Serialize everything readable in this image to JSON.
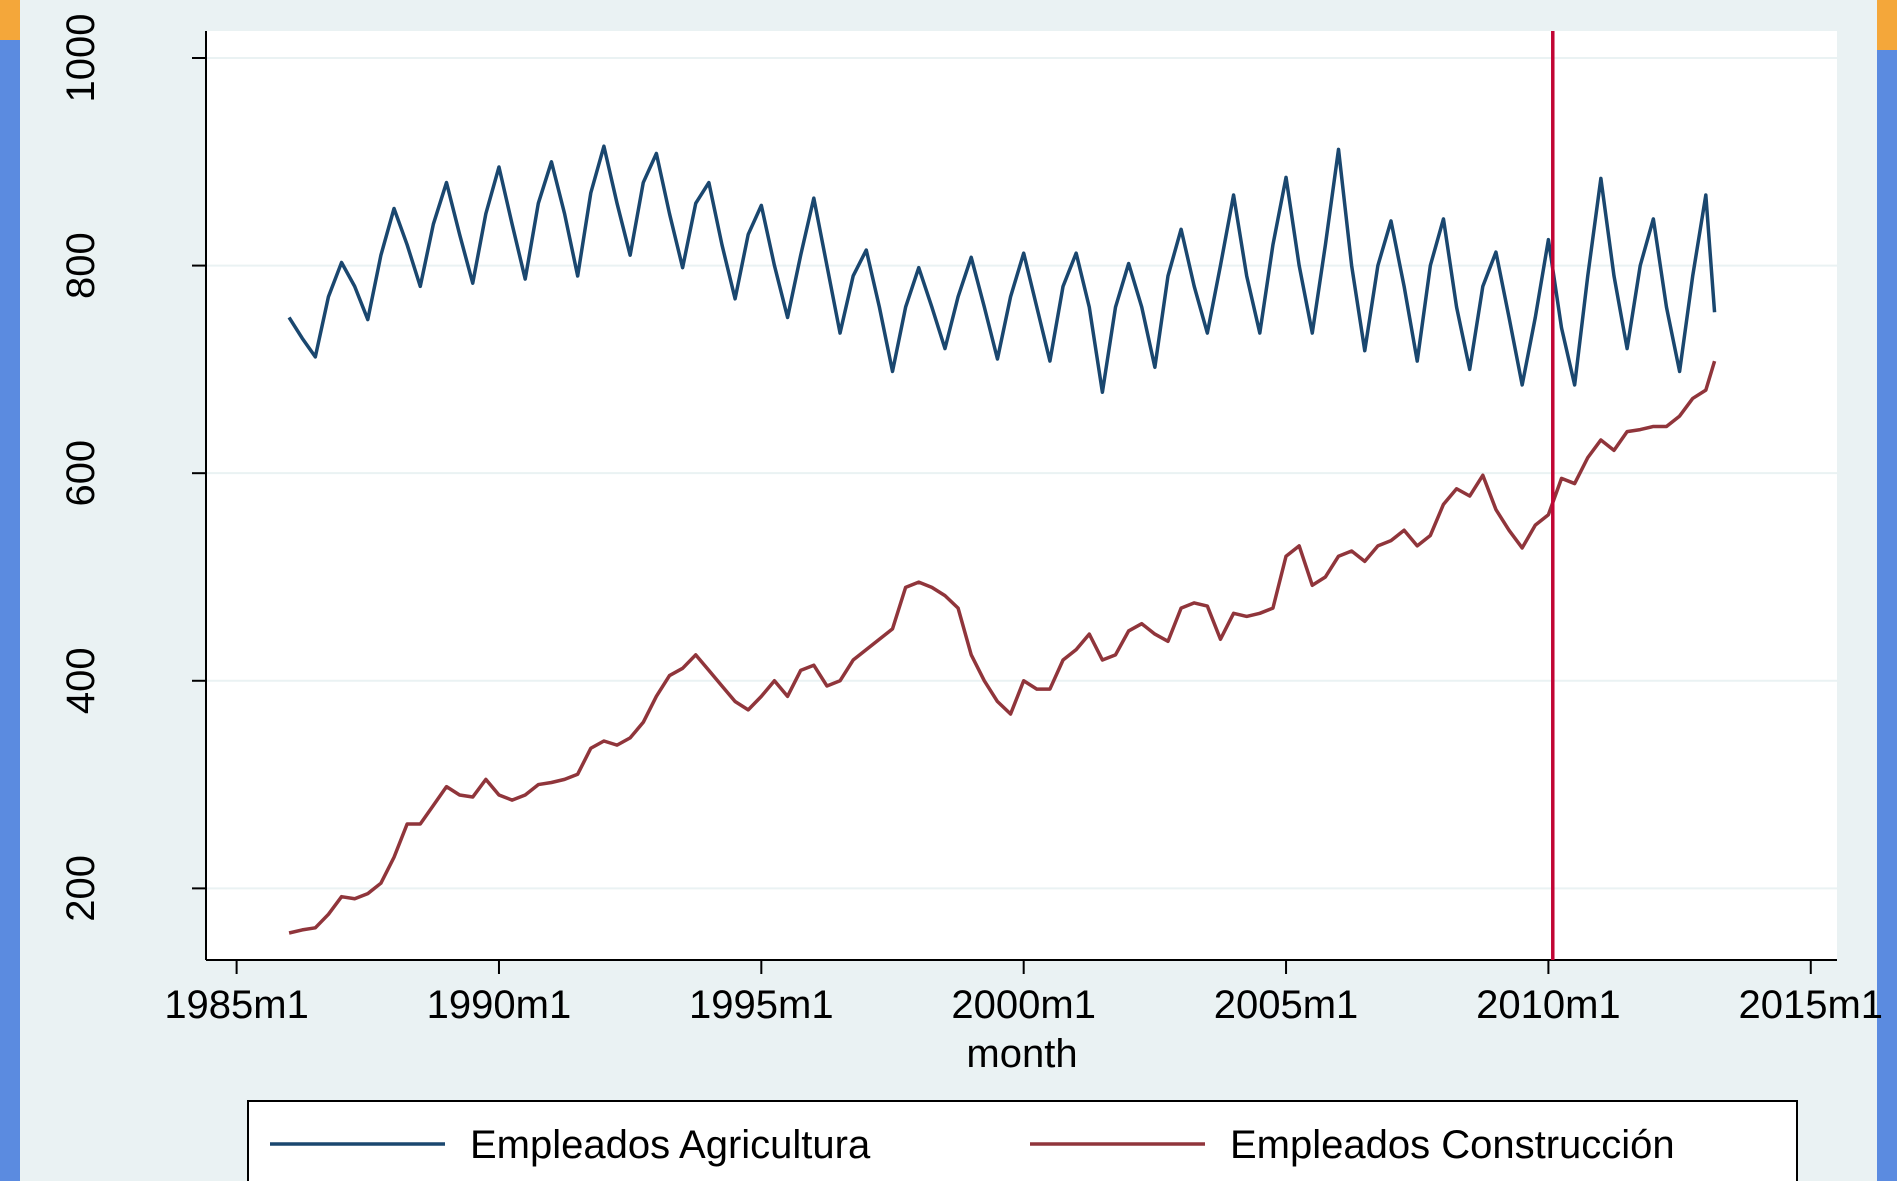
{
  "chart_data": {
    "type": "line",
    "xlabel": "month",
    "x": [
      312,
      315,
      318,
      321,
      324,
      327,
      330,
      333,
      336,
      339,
      342,
      345,
      348,
      351,
      354,
      357,
      360,
      363,
      366,
      369,
      372,
      375,
      378,
      381,
      384,
      387,
      390,
      393,
      396,
      399,
      402,
      405,
      408,
      411,
      414,
      417,
      420,
      423,
      426,
      429,
      432,
      435,
      438,
      441,
      444,
      447,
      450,
      453,
      456,
      459,
      462,
      465,
      468,
      471,
      474,
      477,
      480,
      483,
      486,
      489,
      492,
      495,
      498,
      501,
      504,
      507,
      510,
      513,
      516,
      519,
      522,
      525,
      528,
      531,
      534,
      537,
      540,
      543,
      546,
      549,
      552,
      555,
      558,
      561,
      564,
      567,
      570,
      573,
      576,
      579,
      582,
      585,
      588,
      591,
      594,
      597,
      600,
      603,
      606,
      609,
      612,
      615,
      618,
      621,
      624,
      627,
      630,
      633,
      636,
      638
    ],
    "series": [
      {
        "name": "Empleados Agricultura",
        "color": "#1a476f",
        "values": [
          750,
          730,
          712,
          770,
          803,
          780,
          748,
          810,
          855,
          820,
          780,
          840,
          880,
          830,
          783,
          850,
          895,
          840,
          787,
          860,
          900,
          850,
          790,
          870,
          915,
          860,
          810,
          880,
          908,
          850,
          798,
          860,
          880,
          820,
          768,
          830,
          858,
          800,
          750,
          810,
          865,
          800,
          735,
          790,
          815,
          760,
          698,
          760,
          798,
          760,
          720,
          770,
          808,
          760,
          710,
          770,
          812,
          760,
          708,
          780,
          812,
          760,
          678,
          760,
          802,
          760,
          702,
          790,
          835,
          780,
          735,
          800,
          868,
          790,
          735,
          820,
          885,
          800,
          735,
          820,
          912,
          800,
          718,
          800,
          843,
          780,
          708,
          800,
          845,
          760,
          700,
          780,
          813,
          750,
          685,
          750,
          825,
          740,
          685,
          790,
          884,
          790,
          720,
          800,
          845,
          760,
          698,
          790,
          868,
          755
        ]
      },
      {
        "name": "Empleados Construcción",
        "color": "#90353b",
        "values": [
          157,
          160,
          162,
          175,
          192,
          190,
          195,
          205,
          230,
          262,
          262,
          280,
          298,
          290,
          288,
          305,
          290,
          285,
          290,
          300,
          302,
          305,
          310,
          335,
          342,
          338,
          345,
          360,
          385,
          405,
          412,
          425,
          410,
          395,
          380,
          372,
          385,
          400,
          385,
          410,
          415,
          395,
          400,
          420,
          430,
          440,
          450,
          490,
          495,
          490,
          482,
          470,
          425,
          400,
          380,
          368,
          400,
          392,
          392,
          420,
          430,
          445,
          420,
          425,
          448,
          455,
          445,
          438,
          470,
          475,
          472,
          440,
          465,
          462,
          465,
          470,
          520,
          530,
          492,
          500,
          520,
          525,
          515,
          530,
          535,
          545,
          530,
          540,
          570,
          585,
          578,
          598,
          565,
          545,
          528,
          550,
          560,
          595,
          590,
          615,
          632,
          622,
          640,
          642,
          645,
          645,
          655,
          672,
          680,
          708
        ]
      }
    ],
    "xline": 601,
    "xline_color": "#c10534",
    "xlim": [
      293,
      666
    ],
    "xticks": [
      {
        "value": 300,
        "label": "1985m1"
      },
      {
        "value": 360,
        "label": "1990m1"
      },
      {
        "value": 420,
        "label": "1995m1"
      },
      {
        "value": 480,
        "label": "2000m1"
      },
      {
        "value": 540,
        "label": "2005m1"
      },
      {
        "value": 600,
        "label": "2010m1"
      },
      {
        "value": 660,
        "label": "2015m1"
      }
    ],
    "ylim": [
      131,
      1026
    ],
    "yticks": [
      200,
      400,
      600,
      800,
      1000
    ],
    "grid": true,
    "legend": "bottom"
  }
}
